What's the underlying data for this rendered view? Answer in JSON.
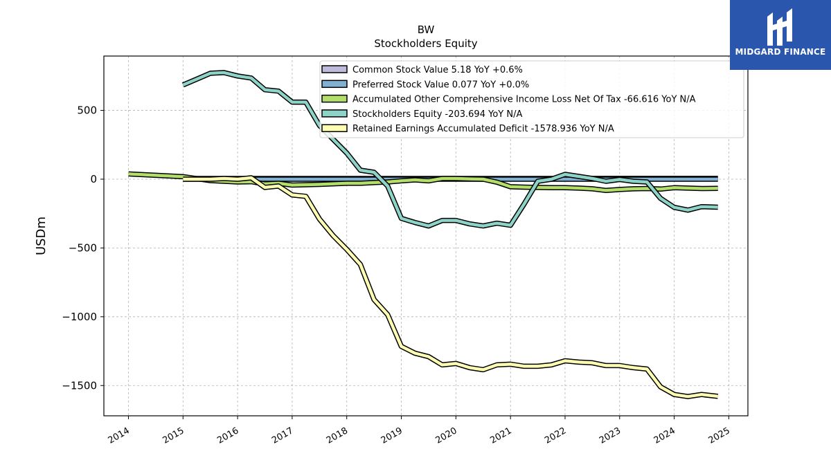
{
  "chart_data": {
    "type": "line",
    "title": "BW",
    "subtitle": "Stockholders  Equity",
    "ylabel": "USDm",
    "xlabel": "",
    "xlim": [
      2013.55,
      2025.35
    ],
    "ylim": [
      -1720,
      895
    ],
    "x_ticks": [
      2014,
      2015,
      2016,
      2017,
      2018,
      2019,
      2020,
      2021,
      2022,
      2023,
      2024,
      2025
    ],
    "x_tick_labels": [
      "2014",
      "2015",
      "2016",
      "2017",
      "2018",
      "2019",
      "2020",
      "2021",
      "2022",
      "2023",
      "2024",
      "2025"
    ],
    "y_ticks": [
      500,
      0,
      -500,
      -1000,
      -1500
    ],
    "y_tick_labels": [
      "500",
      "0",
      "−500",
      "−1000",
      "−1500"
    ],
    "grid": true,
    "legend_position": "top-right",
    "series": [
      {
        "name": "Common Stock Value",
        "legend": "Common Stock Value  5.18 YoY +0.6%",
        "color": "#bebada",
        "x": [
          2015.0,
          2017.0,
          2019.0,
          2021.0,
          2023.0,
          2024.8
        ],
        "y": [
          5.1,
          5.1,
          5.1,
          5.1,
          5.15,
          5.18
        ]
      },
      {
        "name": "Preferred Stock Value",
        "legend": "Preferred Stock Value  0.077 YoY +0.0%",
        "color": "#80b1d3",
        "x": [
          2015.0,
          2017.0,
          2019.0,
          2021.0,
          2023.0,
          2024.8
        ],
        "y": [
          0.077,
          0.077,
          0.077,
          0.077,
          0.077,
          0.077
        ]
      },
      {
        "name": "Accumulated Other Comprehensive Income Loss Net Of Tax",
        "legend": "Accumulated Other Comprehensive Income Loss Net Of Tax  -66.616 YoY N/A",
        "color": "#b3de69",
        "x": [
          2014.0,
          2015.0,
          2015.5,
          2016.0,
          2016.25,
          2016.5,
          2016.75,
          2017.0,
          2017.5,
          2018.0,
          2018.25,
          2018.5,
          2018.75,
          2019.0,
          2019.25,
          2019.5,
          2019.75,
          2020.0,
          2020.25,
          2020.5,
          2020.75,
          2021.0,
          2021.25,
          2021.5,
          2021.75,
          2022.0,
          2022.25,
          2022.5,
          2022.75,
          2023.0,
          2023.25,
          2023.5,
          2023.75,
          2024.0,
          2024.25,
          2024.5,
          2024.8
        ],
        "y": [
          38,
          18,
          -10,
          -20,
          -18,
          -35,
          -30,
          -43,
          -38,
          -30,
          -30,
          -25,
          -20,
          -12,
          -5,
          -12,
          5,
          5,
          2,
          0,
          -22,
          -55,
          -58,
          -60,
          -62,
          -62,
          -65,
          -70,
          -82,
          -75,
          -70,
          -68,
          -72,
          -62,
          -65,
          -68,
          -66.616
        ]
      },
      {
        "name": "Stockholders Equity",
        "legend": "Stockholders Equity  -203.694 YoY N/A",
        "color": "#8dd3c7",
        "x": [
          2015.0,
          2015.25,
          2015.5,
          2015.75,
          2016.0,
          2016.25,
          2016.5,
          2016.75,
          2017.0,
          2017.25,
          2017.5,
          2017.75,
          2018.0,
          2018.25,
          2018.5,
          2018.75,
          2019.0,
          2019.25,
          2019.5,
          2019.75,
          2020.0,
          2020.25,
          2020.5,
          2020.75,
          2021.0,
          2021.25,
          2021.5,
          2021.75,
          2022.0,
          2022.25,
          2022.5,
          2022.75,
          2023.0,
          2023.25,
          2023.5,
          2023.75,
          2024.0,
          2024.25,
          2024.5,
          2024.8
        ],
        "y": [
          685,
          727,
          770,
          775,
          750,
          735,
          650,
          640,
          560,
          560,
          390,
          290,
          190,
          65,
          50,
          -50,
          -285,
          -315,
          -340,
          -300,
          -300,
          -325,
          -340,
          -320,
          -335,
          -180,
          -15,
          0,
          35,
          20,
          5,
          -15,
          -2,
          -15,
          -20,
          -140,
          -205,
          -225,
          -200,
          -203.694
        ]
      },
      {
        "name": "Retained Earnings Accumulated Deficit",
        "legend": "Retained Earnings Accumulated Deficit  -1578.936 YoY N/A",
        "color": "#ffffb3",
        "x": [
          2015.0,
          2015.25,
          2015.5,
          2015.75,
          2016.0,
          2016.25,
          2016.5,
          2016.75,
          2017.0,
          2017.25,
          2017.5,
          2017.75,
          2018.0,
          2018.25,
          2018.5,
          2018.75,
          2019.0,
          2019.25,
          2019.5,
          2019.75,
          2020.0,
          2020.25,
          2020.5,
          2020.75,
          2021.0,
          2021.25,
          2021.5,
          2021.75,
          2022.0,
          2022.25,
          2022.5,
          2022.75,
          2023.0,
          2023.25,
          2023.5,
          2023.75,
          2024.0,
          2024.25,
          2024.5,
          2024.8
        ],
        "y": [
          0,
          0,
          0,
          5,
          0,
          10,
          -60,
          -50,
          -115,
          -125,
          -290,
          -410,
          -510,
          -620,
          -875,
          -985,
          -1215,
          -1265,
          -1290,
          -1350,
          -1340,
          -1370,
          -1385,
          -1350,
          -1345,
          -1360,
          -1360,
          -1350,
          -1320,
          -1330,
          -1335,
          -1355,
          -1355,
          -1370,
          -1380,
          -1510,
          -1565,
          -1580,
          -1565,
          -1578.936
        ]
      }
    ]
  },
  "logo": {
    "text": "MIDGARD FINANCE",
    "color": "#2a56ad"
  }
}
